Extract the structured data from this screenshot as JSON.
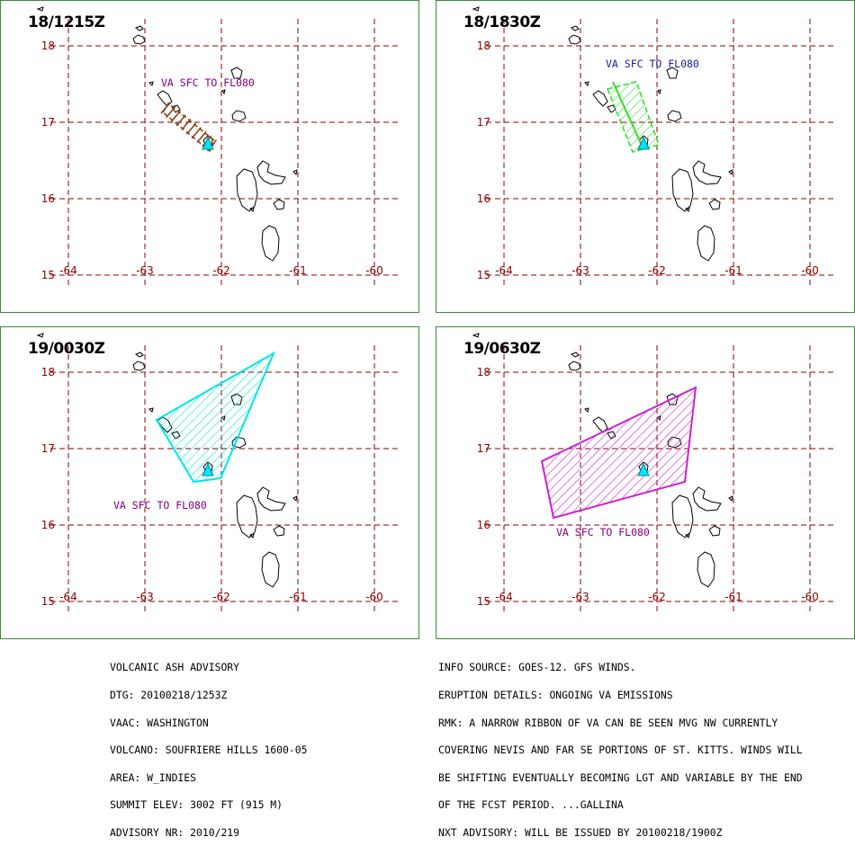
{
  "panels": [
    {
      "id": "p1",
      "title": "18/1215Z",
      "va_label": "VA SFC TO FL080",
      "va_color": "#800080",
      "ash_color": "#8b4513",
      "vent_color": "#00e5ff"
    },
    {
      "id": "p2",
      "title": "18/1830Z",
      "va_label": "VA SFC TO FL080",
      "va_color": "#1a1aa0",
      "ash_color": "#33dd33",
      "vent_color": "#00e5ff"
    },
    {
      "id": "p3",
      "title": "19/0030Z",
      "va_label": "VA SFC TO FL080",
      "va_color": "#800080",
      "ash_color": "#00e5e5",
      "vent_color": "#00e5ff"
    },
    {
      "id": "p4",
      "title": "19/0630Z",
      "va_label": "VA SFC TO FL080",
      "va_color": "#800080",
      "ash_color": "#cc22cc",
      "vent_color": "#00e5ff"
    }
  ],
  "grid": {
    "color": "#8b0000",
    "lat_labels": [
      "18",
      "17",
      "16",
      "15"
    ],
    "lon_labels": [
      "-64",
      "-63",
      "-62",
      "-61",
      "-60"
    ]
  },
  "advisory_left": [
    "VOLCANIC ASH ADVISORY",
    "DTG: 20100218/1253Z",
    "VAAC: WASHINGTON",
    "VOLCANO: SOUFRIERE HILLS 1600-05",
    "AREA: W_INDIES",
    "SUMMIT ELEV: 3002 FT (915 M)",
    "ADVISORY NR: 2010/219"
  ],
  "advisory_right": [
    "INFO SOURCE: GOES-12. GFS WINDS.",
    "ERUPTION DETAILS: ONGOING VA EMISSIONS",
    "RMK: A NARROW RIBBON OF VA CAN BE SEEN MVG NW CURRENTLY",
    "COVERING NEVIS AND FAR SE PORTIONS OF ST. KITTS. WINDS WILL",
    "BE SHIFTING EVENTUALLY BECOMING LGT AND VARIABLE BY THE END",
    "OF THE FCST PERIOD. ...GALLINA",
    "NXT ADVISORY: WILL BE ISSUED BY 20100218/1900Z"
  ]
}
